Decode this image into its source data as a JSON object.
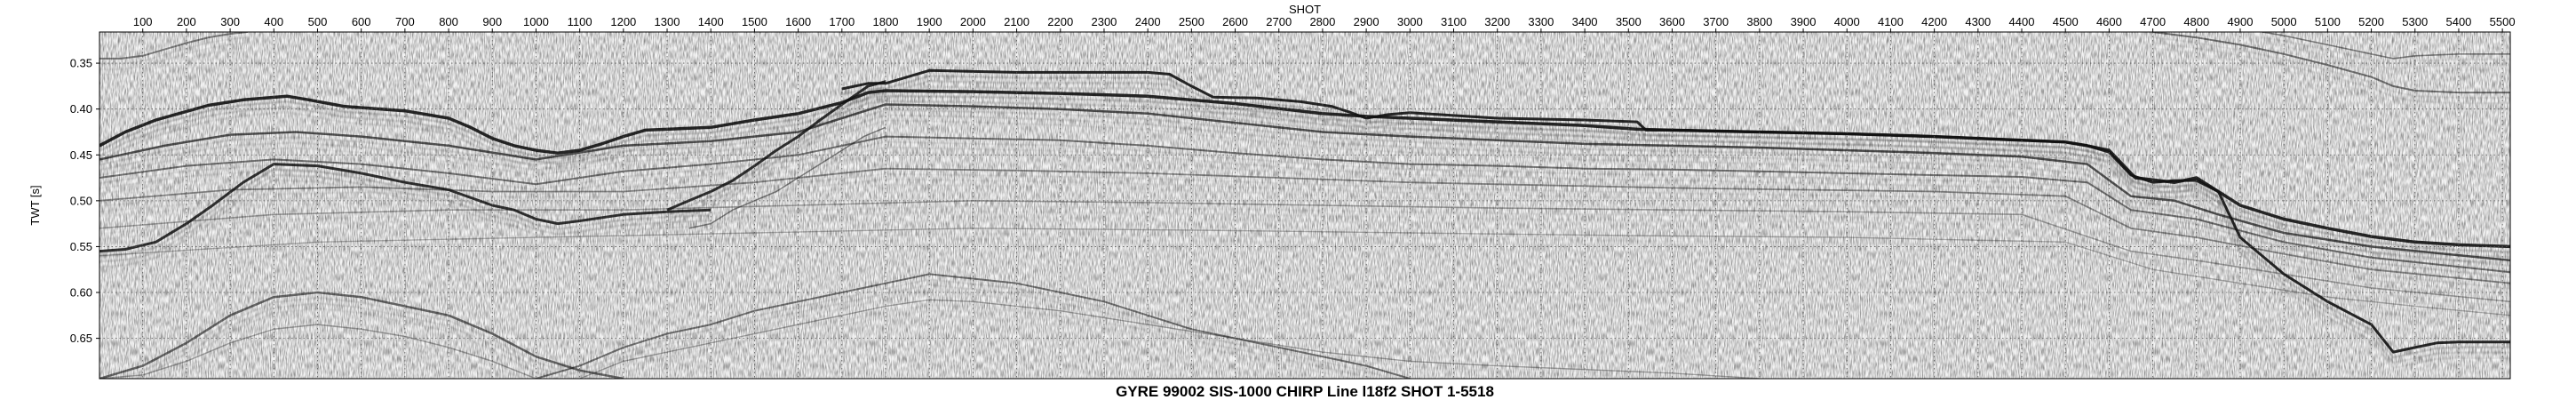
{
  "chart_data": {
    "type": "seismic-section",
    "title": "GYRE 99002 SIS-1000 CHIRP Line l18f2 SHOT 1-5518",
    "xlabel": "SHOT",
    "ylabel": "TWT [s]",
    "xlim": [
      1,
      5518
    ],
    "ylim": [
      0.316,
      0.694
    ],
    "y_inverted": true,
    "grid": true,
    "x_ticks": [
      100,
      200,
      300,
      400,
      500,
      600,
      700,
      800,
      900,
      1000,
      1100,
      1200,
      1300,
      1400,
      1500,
      1600,
      1700,
      1800,
      1900,
      2000,
      2100,
      2200,
      2300,
      2400,
      2500,
      2600,
      2700,
      2800,
      2900,
      3000,
      3100,
      3200,
      3300,
      3400,
      3500,
      3600,
      3700,
      3800,
      3900,
      4000,
      4100,
      4200,
      4300,
      4400,
      4500,
      4600,
      4700,
      4800,
      4900,
      5000,
      5100,
      5200,
      5300,
      5400,
      5500
    ],
    "x_tick_labels": [
      "100",
      "200",
      "300",
      "400",
      "500",
      "600",
      "700",
      "800",
      "900",
      "1000",
      "1100",
      "1200",
      "1300",
      "1400",
      "1500",
      "1600",
      "1700",
      "1800",
      "1900",
      "2000",
      "2100",
      "2200",
      "2300",
      "2400",
      "2500",
      "2600",
      "2700",
      "2800",
      "2900",
      "3000",
      "3100",
      "3200",
      "3300",
      "3400",
      "3500",
      "3600",
      "3700",
      "3800",
      "3900",
      "4000",
      "4100",
      "4200",
      "4300",
      "4400",
      "4500",
      "4600",
      "4700",
      "4800",
      "4900",
      "5000",
      "5100",
      "5200",
      "5300",
      "5400",
      "5500"
    ],
    "y_ticks": [
      0.35,
      0.4,
      0.45,
      0.5,
      0.55,
      0.6,
      0.65
    ],
    "y_tick_labels": [
      "0.35",
      "0.40",
      "0.45",
      "0.50",
      "0.55",
      "0.60",
      "0.65"
    ],
    "horizons": [
      {
        "x": [
          1,
          60,
          130,
          250,
          330,
          380,
          430,
          480,
          560,
          700,
          800,
          850,
          900,
          950,
          1000,
          1050,
          1100,
          1150,
          1200,
          1250,
          1300,
          1400,
          1500,
          1600,
          1700,
          1760,
          1800,
          2000,
          2200,
          2400,
          2600,
          2800,
          2900,
          3000,
          3200,
          3400,
          3520,
          3600,
          3800,
          4000,
          4200,
          4400,
          4500,
          4550,
          4600,
          4660,
          4750,
          4800,
          4850,
          4900,
          5000,
          5100,
          5200,
          5300,
          5400,
          5518
        ],
        "y": [
          0.44,
          0.425,
          0.412,
          0.396,
          0.39,
          0.388,
          0.386,
          0.39,
          0.397,
          0.402,
          0.41,
          0.42,
          0.432,
          0.44,
          0.445,
          0.448,
          0.445,
          0.438,
          0.43,
          0.423,
          0.422,
          0.42,
          0.412,
          0.405,
          0.393,
          0.382,
          0.38,
          0.381,
          0.383,
          0.386,
          0.394,
          0.405,
          0.408,
          0.41,
          0.414,
          0.418,
          0.422,
          0.423,
          0.425,
          0.427,
          0.43,
          0.434,
          0.436,
          0.44,
          0.445,
          0.475,
          0.48,
          0.475,
          0.49,
          0.505,
          0.52,
          0.53,
          0.539,
          0.545,
          0.548,
          0.55
        ],
        "width": 3.5,
        "opacity": 0.9
      },
      {
        "x": [
          1,
          150,
          300,
          450,
          600,
          800,
          1000,
          1200,
          1400,
          1600,
          1800,
          2000,
          2200,
          2400,
          2600,
          2800,
          3000,
          3200,
          3400,
          3600,
          3800,
          4000,
          4200,
          4400,
          4550,
          4650,
          4750,
          4850,
          5000,
          5200,
          5518
        ],
        "y": [
          0.455,
          0.44,
          0.428,
          0.425,
          0.43,
          0.44,
          0.455,
          0.44,
          0.435,
          0.425,
          0.395,
          0.397,
          0.4,
          0.405,
          0.415,
          0.425,
          0.43,
          0.434,
          0.438,
          0.44,
          0.442,
          0.445,
          0.448,
          0.452,
          0.46,
          0.495,
          0.5,
          0.515,
          0.535,
          0.55,
          0.565
        ],
        "width": 2.5,
        "opacity": 0.7
      },
      {
        "x": [
          1,
          200,
          400,
          600,
          800,
          1000,
          1200,
          1400,
          1600,
          1800,
          2000,
          2200,
          2400,
          2600,
          2800,
          3000,
          3200,
          3400,
          3600,
          3800,
          4000,
          4200,
          4400,
          4550,
          4650,
          4800,
          5000,
          5200,
          5518
        ],
        "y": [
          0.475,
          0.462,
          0.455,
          0.46,
          0.47,
          0.482,
          0.468,
          0.46,
          0.45,
          0.43,
          0.432,
          0.434,
          0.44,
          0.448,
          0.455,
          0.46,
          0.462,
          0.465,
          0.466,
          0.468,
          0.47,
          0.472,
          0.474,
          0.48,
          0.51,
          0.52,
          0.545,
          0.562,
          0.578
        ],
        "width": 2.0,
        "opacity": 0.55
      },
      {
        "x": [
          1,
          300,
          600,
          900,
          1200,
          1500,
          1800,
          2100,
          2400,
          2700,
          3000,
          3300,
          3600,
          3900,
          4200,
          4500,
          4650,
          4800,
          5000,
          5200,
          5518
        ],
        "y": [
          0.5,
          0.488,
          0.485,
          0.49,
          0.49,
          0.48,
          0.465,
          0.467,
          0.47,
          0.475,
          0.48,
          0.483,
          0.486,
          0.488,
          0.49,
          0.495,
          0.53,
          0.54,
          0.558,
          0.575,
          0.59
        ],
        "width": 1.8,
        "opacity": 0.45
      },
      {
        "x": [
          1,
          400,
          800,
          1200,
          1600,
          2000,
          2400,
          2800,
          3200,
          3600,
          4000,
          4400,
          4650,
          4800,
          5000,
          5200,
          5518
        ],
        "y": [
          0.53,
          0.515,
          0.51,
          0.51,
          0.505,
          0.5,
          0.502,
          0.505,
          0.508,
          0.51,
          0.512,
          0.515,
          0.555,
          0.565,
          0.58,
          0.595,
          0.61
        ],
        "width": 1.6,
        "opacity": 0.35
      },
      {
        "x": [
          1,
          500,
          1000,
          1500,
          2000,
          2500,
          3000,
          3500,
          4000,
          4500,
          4700,
          4900,
          5100,
          5300,
          5518
        ],
        "y": [
          0.56,
          0.545,
          0.54,
          0.535,
          0.53,
          0.532,
          0.535,
          0.538,
          0.54,
          0.545,
          0.575,
          0.59,
          0.605,
          0.615,
          0.625
        ],
        "width": 1.4,
        "opacity": 0.3
      },
      {
        "x": [
          1,
          60,
          130,
          200,
          260,
          330,
          400,
          500,
          600,
          700,
          800,
          900,
          950,
          1000,
          1050,
          1100,
          1200,
          1300,
          1400
        ],
        "y": [
          0.555,
          0.553,
          0.545,
          0.525,
          0.505,
          0.48,
          0.46,
          0.462,
          0.47,
          0.48,
          0.488,
          0.505,
          0.51,
          0.52,
          0.525,
          0.522,
          0.515,
          0.512,
          0.51
        ],
        "width": 3.0,
        "opacity": 0.85
      },
      {
        "x": [
          1300,
          1350,
          1400,
          1450,
          1500,
          1550,
          1600,
          1650,
          1700,
          1760,
          1800
        ],
        "y": [
          0.51,
          0.5,
          0.49,
          0.478,
          0.462,
          0.445,
          0.43,
          0.412,
          0.395,
          0.375,
          0.37
        ],
        "width": 3.0,
        "opacity": 0.85
      },
      {
        "x": [
          1350,
          1400,
          1450,
          1500,
          1550,
          1600,
          1650,
          1700,
          1750,
          1800
        ],
        "y": [
          0.53,
          0.525,
          0.51,
          0.5,
          0.49,
          0.475,
          0.46,
          0.445,
          0.43,
          0.42
        ],
        "width": 1.5,
        "opacity": 0.5
      },
      {
        "x": [
          1700,
          1760,
          1800,
          1850,
          1900,
          2000,
          2100,
          2200,
          2300,
          2400,
          2450,
          2500,
          2550,
          2650,
          2750,
          2820,
          2860,
          2900,
          2950,
          3000
        ],
        "y": [
          0.378,
          0.372,
          0.372,
          0.365,
          0.358,
          0.359,
          0.36,
          0.36,
          0.36,
          0.36,
          0.362,
          0.375,
          0.387,
          0.388,
          0.392,
          0.397,
          0.403,
          0.41,
          0.406,
          0.404
        ],
        "width": 3.0,
        "opacity": 0.9
      },
      {
        "x": [
          3000,
          3200,
          3400,
          3520,
          3540,
          3600,
          3800,
          4000,
          4200,
          4400,
          4500,
          4550,
          4600,
          4650,
          4700,
          4750,
          4800,
          4850
        ],
        "y": [
          0.404,
          0.41,
          0.412,
          0.414,
          0.423,
          0.423,
          0.425,
          0.427,
          0.43,
          0.434,
          0.436,
          0.44,
          0.447,
          0.472,
          0.48,
          0.478,
          0.478,
          0.49
        ],
        "width": 3.0,
        "opacity": 0.9
      },
      {
        "x": [
          4850,
          4900,
          5000,
          5100,
          5200,
          5250,
          5300,
          5350,
          5400,
          5450,
          5518
        ],
        "y": [
          0.49,
          0.54,
          0.58,
          0.61,
          0.635,
          0.665,
          0.66,
          0.655,
          0.654,
          0.654,
          0.654
        ],
        "width": 3.0,
        "opacity": 0.9
      },
      {
        "x": [
          1,
          100,
          200,
          300,
          400,
          500,
          600,
          700,
          800,
          900,
          1000,
          1100,
          1200
        ],
        "y": [
          0.694,
          0.68,
          0.655,
          0.625,
          0.605,
          0.6,
          0.605,
          0.615,
          0.625,
          0.645,
          0.67,
          0.685,
          0.694
        ],
        "width": 2.5,
        "opacity": 0.6
      },
      {
        "x": [
          1,
          100,
          200,
          300,
          400,
          500,
          600,
          700,
          800,
          900,
          1000
        ],
        "y": [
          0.694,
          0.69,
          0.675,
          0.655,
          0.64,
          0.635,
          0.64,
          0.648,
          0.66,
          0.675,
          0.694
        ],
        "width": 1.5,
        "opacity": 0.35
      },
      {
        "x": [
          1000,
          1100,
          1200,
          1300,
          1400,
          1500,
          1600,
          1700,
          1800,
          1900,
          2000,
          2100,
          2200,
          2300,
          2400,
          2500,
          2600,
          2700,
          2800,
          2900,
          3000
        ],
        "y": [
          0.694,
          0.68,
          0.66,
          0.645,
          0.635,
          0.62,
          0.61,
          0.6,
          0.59,
          0.58,
          0.585,
          0.59,
          0.6,
          0.61,
          0.625,
          0.64,
          0.65,
          0.66,
          0.67,
          0.68,
          0.694
        ],
        "width": 2.0,
        "opacity": 0.55
      },
      {
        "x": [
          1100,
          1200,
          1300,
          1400,
          1500,
          1600,
          1700,
          1800,
          1900,
          2000,
          2200,
          2400,
          2600,
          2800,
          3000,
          3200,
          3400,
          3600,
          3800
        ],
        "y": [
          0.694,
          0.675,
          0.665,
          0.655,
          0.645,
          0.635,
          0.625,
          0.615,
          0.608,
          0.61,
          0.62,
          0.635,
          0.65,
          0.665,
          0.675,
          0.68,
          0.684,
          0.688,
          0.694
        ],
        "width": 1.4,
        "opacity": 0.35
      },
      {
        "x": [
          1,
          50,
          100,
          150,
          200,
          250,
          300,
          340
        ],
        "y": [
          0.345,
          0.345,
          0.342,
          0.335,
          0.328,
          0.322,
          0.318,
          0.316
        ],
        "width": 2.0,
        "opacity": 0.5
      },
      {
        "x": [
          4700,
          4800,
          4900,
          5000,
          5100,
          5200,
          5250,
          5300,
          5400,
          5518
        ],
        "y": [
          0.316,
          0.322,
          0.33,
          0.34,
          0.352,
          0.365,
          0.375,
          0.38,
          0.382,
          0.382
        ],
        "width": 2.0,
        "opacity": 0.55
      },
      {
        "x": [
          4950,
          5000,
          5100,
          5200,
          5250,
          5300,
          5400,
          5518
        ],
        "y": [
          0.316,
          0.32,
          0.33,
          0.34,
          0.345,
          0.342,
          0.34,
          0.34
        ],
        "width": 1.6,
        "opacity": 0.5
      }
    ]
  }
}
